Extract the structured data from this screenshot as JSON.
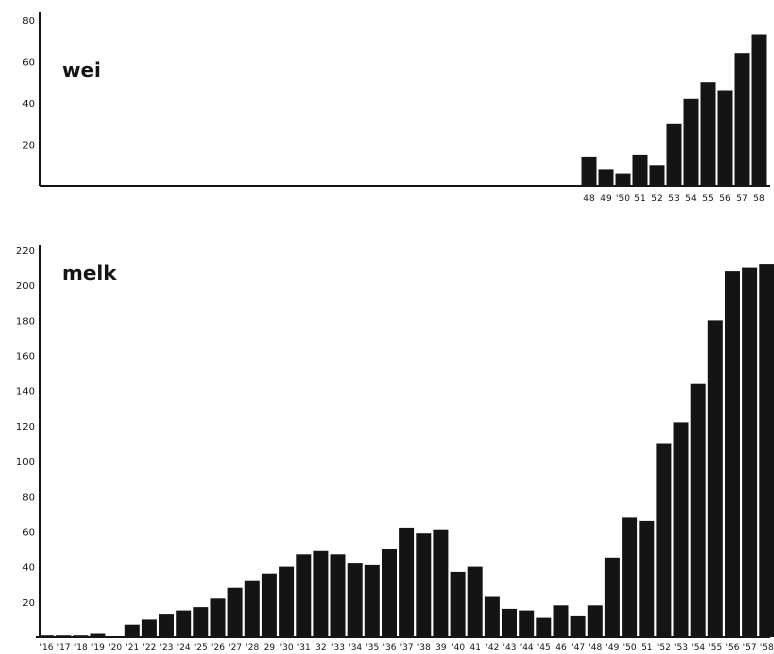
{
  "chart_data": [
    {
      "type": "bar",
      "title": "wei",
      "yticks": [
        20,
        40,
        60,
        80
      ],
      "ylim": [
        0,
        90
      ],
      "categories": [
        "48",
        "49",
        "'50",
        "51",
        "52",
        "53",
        "54",
        "55",
        "56",
        "57",
        "58"
      ],
      "values": [
        14,
        8,
        6,
        15,
        10,
        30,
        42,
        50,
        46,
        64,
        73
      ]
    },
    {
      "type": "bar",
      "title": "melk",
      "yticks": [
        20,
        40,
        60,
        80,
        100,
        120,
        140,
        160,
        180,
        200,
        220
      ],
      "ylim": [
        0,
        225
      ],
      "categories": [
        "'16",
        "'17",
        "'18",
        "'19",
        "'20",
        "'21",
        "'22",
        "'23",
        "'24",
        "'25",
        "'26",
        "'27",
        "'28",
        "29",
        "'30",
        "'31",
        "32",
        "'33",
        "'34",
        "'35",
        "'36",
        "'37",
        "'38",
        "39",
        "'40",
        "41",
        "'42",
        "'43",
        "'44",
        "'45",
        "46",
        "'47",
        "'48",
        "'49",
        "'50",
        "51",
        "'52",
        "'53",
        "'54",
        "'55",
        "'56",
        "'57",
        "'58"
      ],
      "values": [
        1,
        1,
        1,
        2,
        0,
        7,
        10,
        13,
        15,
        17,
        22,
        28,
        32,
        36,
        40,
        47,
        49,
        47,
        42,
        41,
        50,
        62,
        59,
        61,
        37,
        40,
        23,
        16,
        15,
        11,
        18,
        12,
        18,
        45,
        68,
        66,
        110,
        122,
        144,
        180,
        208,
        210,
        212
      ]
    }
  ]
}
